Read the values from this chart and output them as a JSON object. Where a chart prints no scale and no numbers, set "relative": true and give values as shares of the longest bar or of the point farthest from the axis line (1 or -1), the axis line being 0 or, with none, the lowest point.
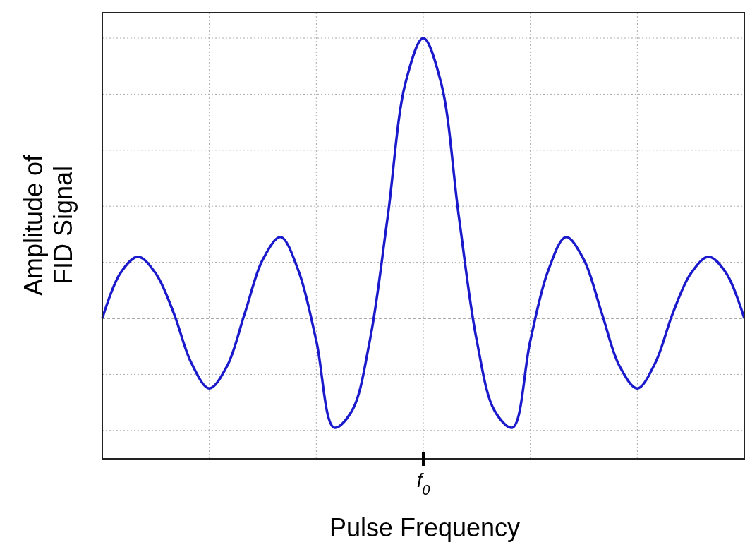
{
  "chart_data": {
    "type": "line",
    "relative": true,
    "xlabel": "Pulse Frequency",
    "ylabel": "Amplitude of\nFID Signal",
    "grid": true,
    "line_style": "solid",
    "annotations": [
      "f$_{0}$"
    ],
    "ref_lines": [
      {
        "axis": "y",
        "value": 0,
        "color": "#555555",
        "line_style": "dashed"
      }
    ],
    "categories": [
      null,
      null,
      null,
      null,
      null,
      null,
      null,
      null,
      null,
      null,
      null,
      null,
      null,
      null,
      null,
      null,
      null,
      null,
      null,
      null,
      null,
      null,
      null,
      null,
      null,
      null,
      null,
      null,
      null,
      null,
      null,
      null,
      null,
      null,
      null,
      null,
      null
    ],
    "series": [
      {
        "color": "#1a1acc",
        "values": [
          0,
          0.16,
          0.22,
          0.16,
          0.02,
          -0.16,
          -0.25,
          -0.17,
          0.02,
          0.21,
          0.29,
          0.17,
          -0.08,
          -0.39,
          -0.33,
          -0.08,
          0.36,
          0.84,
          1,
          0.84,
          0.36,
          -0.08,
          -0.33,
          -0.39,
          -0.08,
          0.17,
          0.29,
          0.21,
          0.02,
          -0.17,
          -0.25,
          -0.16,
          0.02,
          0.16,
          0.22,
          0.16,
          0
        ]
      }
    ]
  }
}
